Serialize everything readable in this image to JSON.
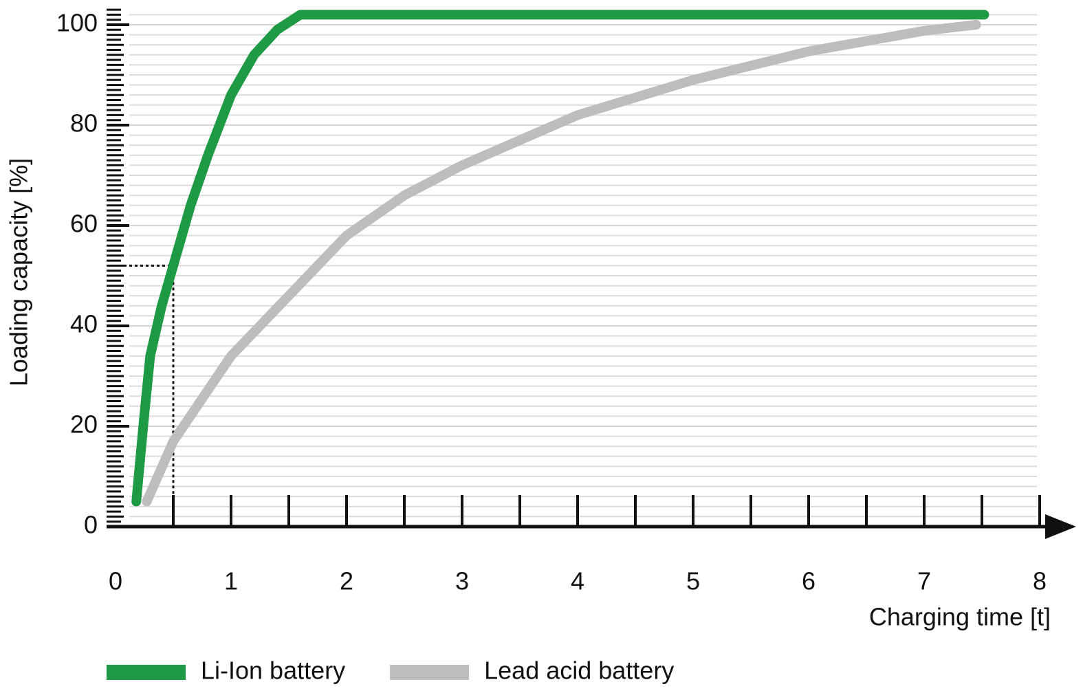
{
  "chart_data": {
    "type": "line",
    "y_label": "Loading capacity [%]",
    "x_label": "Charging time [t]",
    "xlim": [
      0,
      8
    ],
    "xticks": [
      0,
      1,
      2,
      3,
      4,
      5,
      6,
      7,
      8
    ],
    "ylim": [
      0,
      100
    ],
    "yticks": [
      0,
      20,
      40,
      60,
      80,
      100
    ],
    "grid": true,
    "legend": "bottom",
    "guide": {
      "x": 0.5,
      "y": 52
    },
    "series": [
      {
        "name": "Li-Ion battery",
        "color": "#1e9a45",
        "x": [
          0.18,
          0.24,
          0.3,
          0.4,
          0.5,
          0.65,
          0.8,
          1.0,
          1.2,
          1.4,
          1.6,
          2,
          3,
          4,
          5,
          6,
          7,
          7.52
        ],
        "values": [
          5,
          20,
          34,
          44,
          52,
          64,
          74,
          86,
          94,
          99,
          102,
          102,
          102,
          102,
          102,
          102,
          102,
          102
        ]
      },
      {
        "name": "Lead acid battery",
        "color": "#bdbdbd",
        "x": [
          0.27,
          0.5,
          1.0,
          1.5,
          2,
          2.5,
          3,
          3.5,
          4,
          5,
          6,
          7,
          7.45
        ],
        "values": [
          5,
          17,
          34,
          46,
          58,
          66,
          72,
          77,
          82,
          89,
          94.7,
          98.8,
          100
        ]
      }
    ]
  }
}
